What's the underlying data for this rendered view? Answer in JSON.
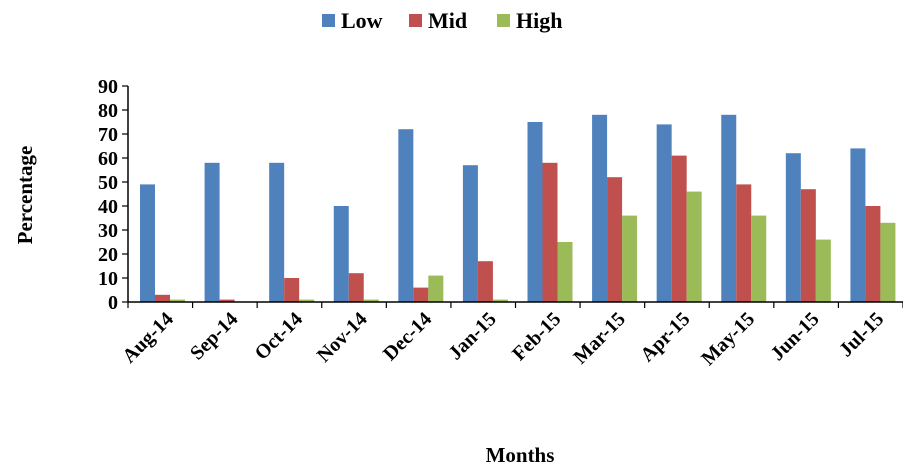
{
  "chart_data": {
    "type": "bar",
    "title": "",
    "xlabel": "Months",
    "ylabel": "Percentage",
    "ylim": [
      0,
      90
    ],
    "yticks": [
      0,
      10,
      20,
      30,
      40,
      50,
      60,
      70,
      80,
      90
    ],
    "grid": false,
    "legend_position": "top",
    "categories": [
      "Aug-14",
      "Sep-14",
      "Oct-14",
      "Nov-14",
      "Dec-14",
      "Jan-15",
      "Feb-15",
      "Mar-15",
      "Apr-15",
      "May-15",
      "Jun-15",
      "Jul-15"
    ],
    "series": [
      {
        "name": "Low",
        "color": "#4F81BD",
        "values": [
          49,
          58,
          58,
          40,
          72,
          57,
          75,
          78,
          74,
          78,
          62,
          64
        ]
      },
      {
        "name": "Mid",
        "color": "#C0504D",
        "values": [
          3,
          1,
          10,
          12,
          6,
          17,
          58,
          52,
          61,
          49,
          47,
          40
        ]
      },
      {
        "name": "High",
        "color": "#9BBB59",
        "values": [
          1,
          0,
          1,
          1,
          11,
          1,
          25,
          36,
          46,
          36,
          26,
          33
        ]
      }
    ]
  }
}
